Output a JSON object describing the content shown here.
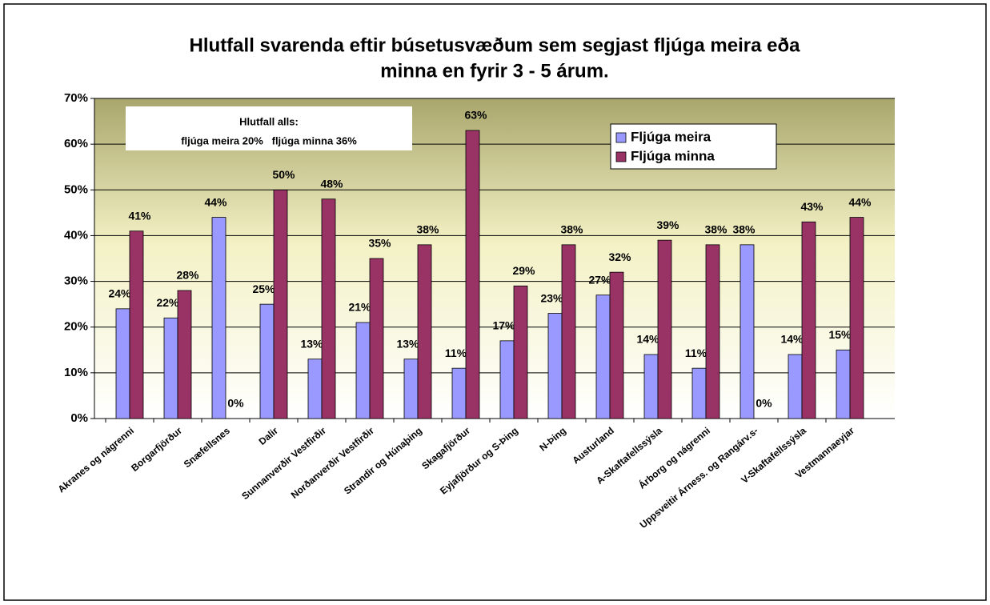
{
  "chart_data": {
    "type": "bar",
    "title": [
      "Hlutfall svarenda eftir búsetusvæðum sem segjast fljúga meira eða",
      "minna en fyrir 3 - 5 árum."
    ],
    "annotations": [
      "Hlutfall alls:",
      "fljúga meira 20%   fljúga minna 36%"
    ],
    "categories": [
      "Akranes og nágrenni",
      "Borgarfjörður",
      "Snæfellsnes",
      "Dalir",
      "Sunnanverðir Vestfirðir",
      "Norðanverðir Vestfirðir",
      "Strandir og Húnaþing",
      "Skagafjörður",
      "Eyjafjörður og S-Þing",
      "N-Þing",
      "Austurland",
      "A-Skaftafellssýsla",
      "Árborg og nágrenni",
      "Uppsveitir Árness. og Rangárv.s-",
      "V-Skaftafellssýsla",
      "Vestmannaeyjar"
    ],
    "series": [
      {
        "name": "Fljúga meira",
        "color": "#9999ff",
        "values": [
          24,
          22,
          44,
          25,
          13,
          21,
          13,
          11,
          17,
          23,
          27,
          14,
          11,
          38,
          14,
          15
        ],
        "value_labels": [
          "24%",
          "22%",
          "44%",
          "25%",
          "13%",
          "21%",
          "13%",
          "11%",
          "17%",
          "23%",
          "27%",
          "14%",
          "11%",
          "38%",
          "14%",
          "15%"
        ]
      },
      {
        "name": "Fljúga minna",
        "color": "#993366",
        "values": [
          41,
          28,
          0,
          50,
          48,
          35,
          38,
          63,
          29,
          38,
          32,
          39,
          38,
          0,
          43,
          44
        ],
        "value_labels": [
          "41%",
          "28%",
          "0%",
          "50%",
          "48%",
          "35%",
          "38%",
          "63%",
          "29%",
          "38%",
          "32%",
          "39%",
          "38%",
          "0%",
          "43%",
          "44%"
        ]
      }
    ],
    "ylim": [
      0,
      70
    ],
    "yticks": [
      {
        "value": 0,
        "label": "0%"
      },
      {
        "value": 10,
        "label": "10%"
      },
      {
        "value": 20,
        "label": "20%"
      },
      {
        "value": 30,
        "label": "30%"
      },
      {
        "value": 40,
        "label": "40%"
      },
      {
        "value": 50,
        "label": "50%"
      },
      {
        "value": 60,
        "label": "60%"
      },
      {
        "value": 70,
        "label": "70%"
      }
    ],
    "grid": true,
    "legend": "upper right"
  }
}
